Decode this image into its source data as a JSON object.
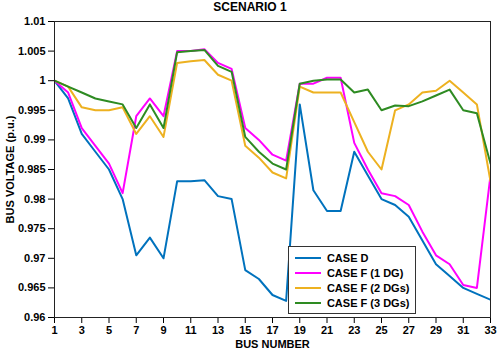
{
  "chart_data": {
    "type": "line",
    "title": "SCENARIO 1",
    "x_label": "BUS NUMBER",
    "y_label": "BUS VOLTAGE (p.u.)",
    "x": [
      1,
      2,
      3,
      4,
      5,
      6,
      7,
      8,
      9,
      10,
      11,
      12,
      13,
      14,
      15,
      16,
      17,
      18,
      19,
      20,
      21,
      22,
      23,
      24,
      25,
      26,
      27,
      28,
      29,
      30,
      31,
      32,
      33
    ],
    "series": [
      {
        "name": "CASE D",
        "color": "#0072BD",
        "values": [
          1.0,
          0.997,
          0.991,
          0.988,
          0.985,
          0.98,
          0.9705,
          0.9735,
          0.97,
          0.983,
          0.983,
          0.9832,
          0.9805,
          0.98,
          0.968,
          0.9665,
          0.9638,
          0.9628,
          0.996,
          0.9815,
          0.978,
          0.978,
          0.988,
          0.984,
          0.98,
          0.979,
          0.977,
          0.973,
          0.969,
          0.967,
          0.965,
          0.964,
          0.963
        ]
      },
      {
        "name": "CASE F (1 DG)",
        "color": "#FF00FF",
        "values": [
          1.0,
          0.998,
          0.992,
          0.989,
          0.986,
          0.981,
          0.994,
          0.997,
          0.994,
          1.005,
          1.005,
          1.0053,
          1.003,
          1.002,
          0.992,
          0.99,
          0.9875,
          0.9865,
          0.9995,
          0.9995,
          1.0005,
          1.0005,
          0.9895,
          0.985,
          0.981,
          0.9805,
          0.979,
          0.9745,
          0.9705,
          0.969,
          0.9655,
          0.965,
          0.984
        ]
      },
      {
        "name": "CASE F (2 DGs)",
        "color": "#EDB120",
        "values": [
          1.0,
          0.999,
          0.9955,
          0.995,
          0.995,
          0.9955,
          0.991,
          0.994,
          0.9905,
          1.003,
          1.0033,
          1.0035,
          1.001,
          1.0,
          0.989,
          0.987,
          0.9845,
          0.9835,
          0.999,
          0.998,
          0.998,
          0.998,
          0.993,
          0.988,
          0.985,
          0.995,
          0.996,
          0.998,
          0.9983,
          1.0,
          0.998,
          0.996,
          0.983
        ]
      },
      {
        "name": "CASE F (3 DGs)",
        "color": "#2E8B22",
        "values": [
          1.0,
          0.999,
          0.998,
          0.997,
          0.9965,
          0.996,
          0.992,
          0.996,
          0.992,
          1.0048,
          1.005,
          1.0052,
          1.0025,
          1.0015,
          0.9905,
          0.988,
          0.986,
          0.985,
          0.9995,
          1.0,
          1.0002,
          1.0002,
          0.998,
          0.9985,
          0.995,
          0.9958,
          0.9957,
          0.9965,
          0.9975,
          0.9985,
          0.995,
          0.9945,
          0.986
        ]
      }
    ],
    "xlim": [
      1,
      33
    ],
    "xticks": [
      1,
      3,
      5,
      7,
      9,
      11,
      13,
      15,
      17,
      19,
      21,
      23,
      25,
      27,
      29,
      31,
      33
    ],
    "ylim": [
      0.96,
      1.01
    ],
    "yticks": [
      0.96,
      0.965,
      0.97,
      0.975,
      0.98,
      0.985,
      0.99,
      0.995,
      1,
      1.005,
      1.01
    ],
    "grid": false,
    "legend": "lower right"
  }
}
